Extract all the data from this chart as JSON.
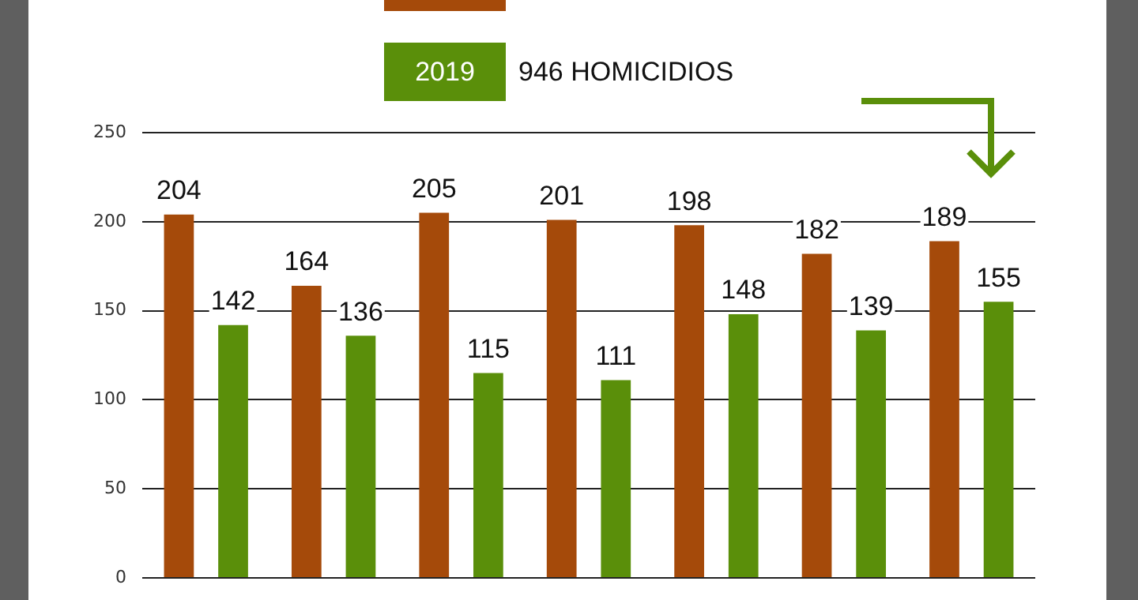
{
  "chart_data": {
    "type": "bar",
    "categories": [
      null,
      null,
      null,
      null,
      null,
      null,
      null
    ],
    "series": [
      {
        "color": "#a54a0a",
        "values": [
          204,
          164,
          205,
          201,
          198,
          182,
          189
        ]
      },
      {
        "name": "2019",
        "color": "#5a8f0a",
        "values": [
          142,
          136,
          115,
          111,
          148,
          139,
          155
        ]
      }
    ],
    "annotations": [
      "946 HOMICIDIOS"
    ],
    "ylim": [
      0,
      250
    ],
    "yticks": [
      0,
      50,
      100,
      150,
      200,
      250
    ],
    "grid": "y",
    "legend": "top",
    "data_labels": true
  }
}
